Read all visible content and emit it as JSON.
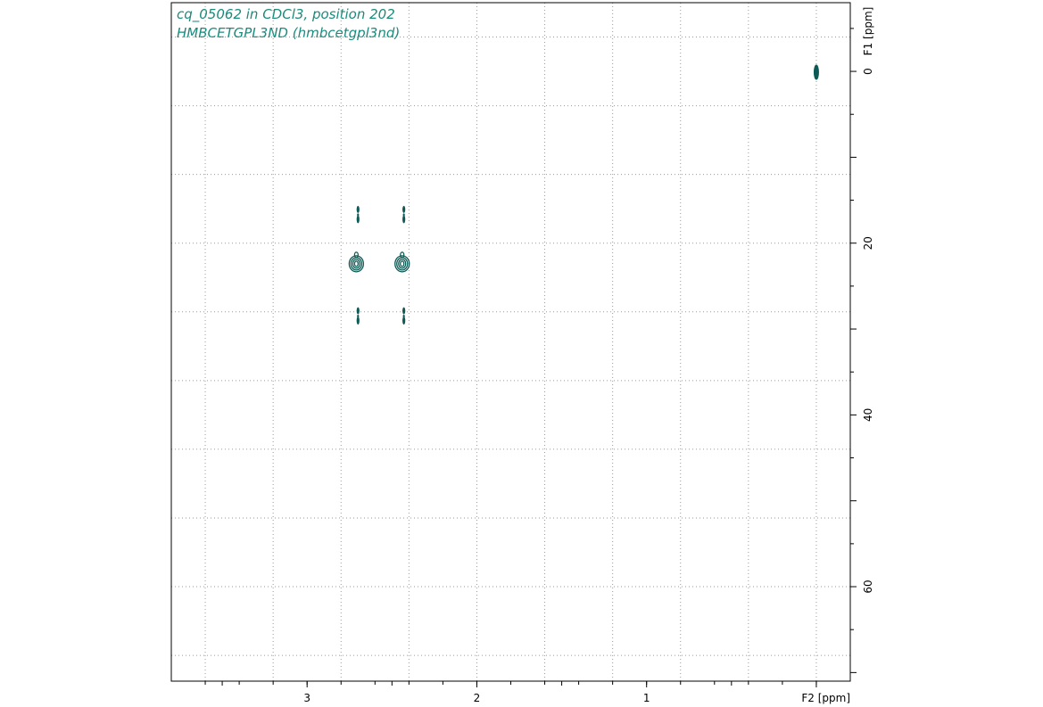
{
  "header": {
    "line1": "cq_05062 in CDCl3, position 202",
    "line2": "HMBCETGPL3ND (hmbcetgpl3nd)"
  },
  "colors": {
    "title": "#1a8a7c",
    "contour": "#0d5a55",
    "frame": "#000000",
    "grid": "#9a9a9a"
  },
  "chart_data": {
    "type": "scatter",
    "subtype": "2D NMR contour plot",
    "grid": true,
    "xaxis": {
      "label": "F2 [ppm]",
      "range": [
        3.8,
        -0.2
      ],
      "reversed": true,
      "tick_labels": [
        "3",
        "2",
        "1"
      ],
      "tick_values": [
        3,
        2,
        1
      ]
    },
    "yaxis": {
      "label": "F1 [ppm]",
      "range": [
        -8,
        71
      ],
      "reversed": true,
      "position": "right",
      "tick_labels": [
        "0",
        "20",
        "40",
        "60"
      ],
      "tick_values": [
        0,
        20,
        40,
        60
      ]
    },
    "peaks": [
      {
        "x": 0.0,
        "y": 0.1,
        "intensity": "medium"
      },
      {
        "x": 2.7,
        "y": 16.7,
        "intensity": "weak"
      },
      {
        "x": 2.43,
        "y": 16.7,
        "intensity": "weak"
      },
      {
        "x": 2.71,
        "y": 22.4,
        "intensity": "strong"
      },
      {
        "x": 2.44,
        "y": 22.4,
        "intensity": "strong"
      },
      {
        "x": 2.7,
        "y": 28.5,
        "intensity": "weak"
      },
      {
        "x": 2.43,
        "y": 28.5,
        "intensity": "weak"
      }
    ]
  }
}
